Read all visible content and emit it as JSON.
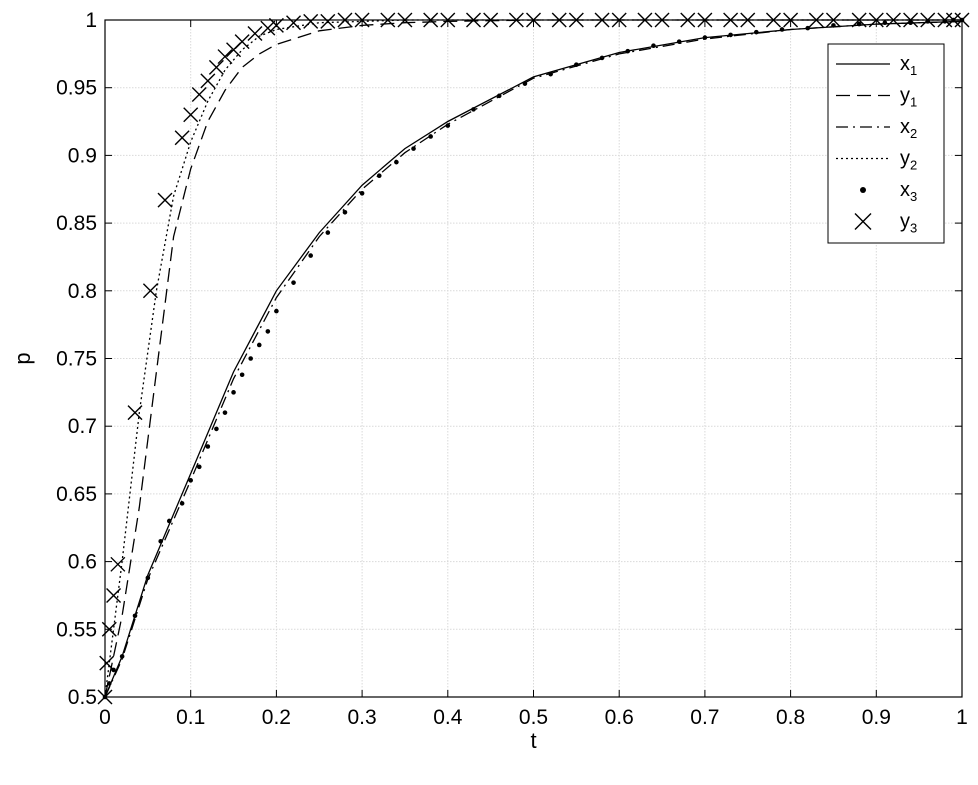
{
  "chart_data": {
    "type": "line",
    "title": "",
    "xlabel": "t",
    "ylabel": "p",
    "xlim": [
      0,
      1
    ],
    "ylim": [
      0.5,
      1
    ],
    "grid": true,
    "legend_position": "top-right",
    "xticks": [
      0,
      0.1,
      0.2,
      0.3,
      0.4,
      0.5,
      0.6,
      0.7,
      0.8,
      0.9,
      1
    ],
    "xtick_labels": [
      "0",
      "0.1",
      "0.2",
      "0.3",
      "0.4",
      "0.5",
      "0.6",
      "0.7",
      "0.8",
      "0.9",
      "1"
    ],
    "yticks": [
      0.5,
      0.55,
      0.6,
      0.65,
      0.7,
      0.75,
      0.8,
      0.85,
      0.9,
      0.95,
      1
    ],
    "ytick_labels": [
      "0.5",
      "0.55",
      "0.6",
      "0.65",
      "0.7",
      "0.75",
      "0.8",
      "0.85",
      "0.9",
      "0.95",
      "1"
    ],
    "series": [
      {
        "name": "x1",
        "label_main": "x",
        "label_sub": "1",
        "style": "solid",
        "marker": "none",
        "x": [
          0,
          0.02,
          0.05,
          0.1,
          0.15,
          0.2,
          0.25,
          0.3,
          0.35,
          0.4,
          0.5,
          0.6,
          0.7,
          0.8,
          0.9,
          1
        ],
        "y": [
          0.5,
          0.53,
          0.59,
          0.665,
          0.74,
          0.8,
          0.843,
          0.878,
          0.905,
          0.925,
          0.958,
          0.976,
          0.987,
          0.993,
          0.997,
          0.999
        ]
      },
      {
        "name": "y1",
        "label_main": "y",
        "label_sub": "1",
        "style": "dashed",
        "marker": "none",
        "x": [
          0,
          0.02,
          0.04,
          0.06,
          0.08,
          0.1,
          0.12,
          0.14,
          0.16,
          0.18,
          0.2,
          0.25,
          0.3,
          0.35,
          0.4,
          0.5,
          0.6,
          0.7,
          0.8,
          0.9,
          1
        ],
        "y": [
          0.5,
          0.56,
          0.64,
          0.74,
          0.84,
          0.89,
          0.925,
          0.948,
          0.965,
          0.975,
          0.982,
          0.992,
          0.996,
          0.998,
          0.999,
          1,
          1,
          1,
          1,
          1,
          1
        ]
      },
      {
        "name": "x2",
        "label_main": "x",
        "label_sub": "2",
        "style": "dashdot",
        "marker": "none",
        "x": [
          0,
          0.02,
          0.05,
          0.1,
          0.15,
          0.2,
          0.25,
          0.3,
          0.35,
          0.4,
          0.5,
          0.6,
          0.7,
          0.8,
          0.9,
          1
        ],
        "y": [
          0.5,
          0.528,
          0.587,
          0.66,
          0.735,
          0.795,
          0.84,
          0.875,
          0.902,
          0.923,
          0.957,
          0.975,
          0.986,
          0.993,
          0.997,
          0.999
        ]
      },
      {
        "name": "y2",
        "label_main": "y",
        "label_sub": "2",
        "style": "dotted",
        "marker": "none",
        "x": [
          0,
          0.02,
          0.04,
          0.06,
          0.08,
          0.1,
          0.12,
          0.14,
          0.16,
          0.18,
          0.2,
          0.25,
          0.3,
          0.35,
          0.4,
          0.5,
          0.6,
          0.7,
          0.8,
          0.9,
          1
        ],
        "y": [
          0.5,
          0.6,
          0.71,
          0.8,
          0.87,
          0.91,
          0.94,
          0.963,
          0.978,
          0.988,
          0.993,
          0.998,
          0.999,
          1,
          1,
          1,
          1,
          1,
          1,
          1,
          1
        ]
      },
      {
        "name": "x3",
        "label_main": "x",
        "label_sub": "3",
        "style": "none",
        "marker": "dot",
        "x": [
          0,
          0.005,
          0.01,
          0.02,
          0.035,
          0.05,
          0.065,
          0.075,
          0.09,
          0.1,
          0.11,
          0.12,
          0.13,
          0.14,
          0.15,
          0.16,
          0.17,
          0.18,
          0.19,
          0.2,
          0.22,
          0.24,
          0.26,
          0.28,
          0.3,
          0.32,
          0.34,
          0.36,
          0.38,
          0.4,
          0.43,
          0.46,
          0.49,
          0.52,
          0.55,
          0.58,
          0.61,
          0.64,
          0.67,
          0.7,
          0.73,
          0.76,
          0.79,
          0.82,
          0.85,
          0.88,
          0.91,
          0.94,
          0.96,
          0.98,
          0.99,
          1
        ],
        "y": [
          0.5,
          0.51,
          0.52,
          0.53,
          0.56,
          0.588,
          0.615,
          0.63,
          0.643,
          0.66,
          0.67,
          0.685,
          0.698,
          0.71,
          0.725,
          0.738,
          0.75,
          0.76,
          0.77,
          0.785,
          0.806,
          0.826,
          0.843,
          0.858,
          0.872,
          0.885,
          0.895,
          0.905,
          0.914,
          0.922,
          0.934,
          0.944,
          0.953,
          0.96,
          0.967,
          0.972,
          0.977,
          0.981,
          0.984,
          0.987,
          0.989,
          0.991,
          0.993,
          0.994,
          0.996,
          0.997,
          0.998,
          0.998,
          0.999,
          0.999,
          1,
          1
        ]
      },
      {
        "name": "y3",
        "label_main": "y",
        "label_sub": "3",
        "style": "none",
        "marker": "x",
        "x": [
          0,
          0.002,
          0.005,
          0.01,
          0.015,
          0.035,
          0.053,
          0.07,
          0.09,
          0.1,
          0.11,
          0.12,
          0.13,
          0.14,
          0.15,
          0.16,
          0.175,
          0.19,
          0.2,
          0.22,
          0.24,
          0.26,
          0.28,
          0.3,
          0.33,
          0.35,
          0.38,
          0.4,
          0.43,
          0.45,
          0.48,
          0.5,
          0.53,
          0.55,
          0.58,
          0.6,
          0.63,
          0.65,
          0.68,
          0.7,
          0.73,
          0.75,
          0.78,
          0.8,
          0.83,
          0.85,
          0.88,
          0.9,
          0.92,
          0.94,
          0.96,
          0.98,
          0.99,
          1
        ],
        "y": [
          0.5,
          0.525,
          0.55,
          0.575,
          0.598,
          0.71,
          0.8,
          0.867,
          0.913,
          0.93,
          0.945,
          0.955,
          0.965,
          0.973,
          0.978,
          0.984,
          0.99,
          0.994,
          0.996,
          0.998,
          0.999,
          0.999,
          1,
          1,
          1,
          1,
          1,
          1,
          1,
          1,
          1,
          1,
          1,
          1,
          1,
          1,
          1,
          1,
          1,
          1,
          1,
          1,
          1,
          1,
          1,
          1,
          1,
          1,
          1,
          1,
          1,
          1,
          1,
          1
        ]
      }
    ]
  }
}
